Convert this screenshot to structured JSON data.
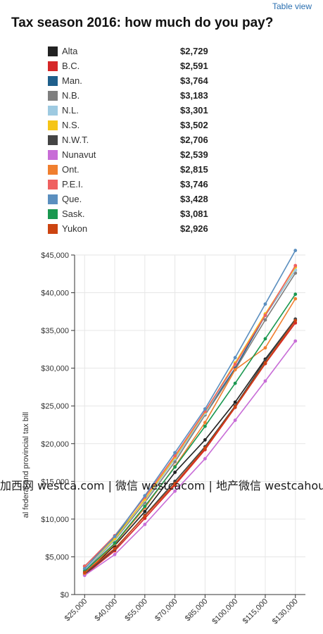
{
  "header": {
    "table_view_label": "Table view",
    "title": "Tax season 2016: how much do you pay?"
  },
  "legend": [
    {
      "name": "Alta",
      "value": "$2,729",
      "color": "#222222"
    },
    {
      "name": "B.C.",
      "value": "$2,591",
      "color": "#d62728"
    },
    {
      "name": "Man.",
      "value": "$3,764",
      "color": "#1f5f8b"
    },
    {
      "name": "N.B.",
      "value": "$3,183",
      "color": "#7f7f7f"
    },
    {
      "name": "N.L.",
      "value": "$3,301",
      "color": "#9ecae1"
    },
    {
      "name": "N.S.",
      "value": "$3,502",
      "color": "#f5c518"
    },
    {
      "name": "N.W.T.",
      "value": "$2,706",
      "color": "#444444"
    },
    {
      "name": "Nunavut",
      "value": "$2,539",
      "color": "#c86dd7"
    },
    {
      "name": "Ont.",
      "value": "$2,815",
      "color": "#f07f2f"
    },
    {
      "name": "P.E.I.",
      "value": "$3,746",
      "color": "#ef6161"
    },
    {
      "name": "Que.",
      "value": "$3,428",
      "color": "#5b8fbf"
    },
    {
      "name": "Sask.",
      "value": "$3,081",
      "color": "#1a9850"
    },
    {
      "name": "Yukon",
      "value": "$2,926",
      "color": "#cc4411"
    }
  ],
  "watermark": "加西网 westca.com | 微信 westcacom | 地产微信 westcahouse",
  "chart_data": {
    "type": "line",
    "x": [
      25000,
      40000,
      55000,
      70000,
      85000,
      100000,
      115000,
      130000
    ],
    "x_tick_labels": [
      "$25,000",
      "$40,000",
      "$55,000",
      "$70,000",
      "$85,000",
      "$100,000",
      "$115,000",
      "$130,000"
    ],
    "x_range": [
      20000,
      135000
    ],
    "ylabel": "al federal and provincial tax bill",
    "ylim": [
      0,
      45000
    ],
    "y_ticks": [
      0,
      5000,
      10000,
      15000,
      20000,
      25000,
      30000,
      35000,
      40000,
      45000
    ],
    "y_tick_labels": [
      "$0",
      "$5,000",
      "$10,000",
      "$15,000",
      "$20,000",
      "$25,000",
      "$30,000",
      "$35,000",
      "$40,000",
      "$45,000"
    ],
    "grid": true,
    "series": [
      {
        "name": "Alta",
        "color": "#222222",
        "values": [
          2729,
          6500,
          11000,
          16200,
          20500,
          25500,
          31200,
          36500
        ]
      },
      {
        "name": "B.C.",
        "color": "#d62728",
        "values": [
          2591,
          5800,
          10100,
          14500,
          19200,
          24800,
          30600,
          36000
        ]
      },
      {
        "name": "Man.",
        "color": "#1f5f8b",
        "values": [
          3764,
          7600,
          12500,
          18000,
          24000,
          30000,
          37000,
          43000
        ]
      },
      {
        "name": "N.B.",
        "color": "#7f7f7f",
        "values": [
          3183,
          7200,
          12200,
          17600,
          23800,
          29800,
          36400,
          42600
        ]
      },
      {
        "name": "N.L.",
        "color": "#9ecae1",
        "values": [
          3301,
          7300,
          12500,
          18000,
          24000,
          30500,
          37100,
          43000
        ]
      },
      {
        "name": "N.S.",
        "color": "#f5c518",
        "values": [
          3502,
          7400,
          12600,
          18200,
          24200,
          30700,
          37200,
          43400
        ]
      },
      {
        "name": "N.W.T.",
        "color": "#444444",
        "values": [
          2706,
          6000,
          10500,
          15000,
          19600,
          25000,
          31000,
          36500
        ]
      },
      {
        "name": "Nunavut",
        "color": "#c86dd7",
        "values": [
          2539,
          5300,
          9300,
          13700,
          18000,
          23100,
          28300,
          33600
        ]
      },
      {
        "name": "Ont.",
        "color": "#f07f2f",
        "values": [
          2815,
          6700,
          11500,
          17000,
          22800,
          29800,
          32700,
          39200
        ]
      },
      {
        "name": "P.E.I.",
        "color": "#ef6161",
        "values": [
          3746,
          7800,
          12900,
          18400,
          24300,
          30500,
          37000,
          43600
        ]
      },
      {
        "name": "Que.",
        "color": "#5b8fbf",
        "values": [
          3428,
          7700,
          13100,
          18800,
          24600,
          31400,
          38500,
          45600
        ]
      },
      {
        "name": "Sask.",
        "color": "#1a9850",
        "values": [
          3081,
          6800,
          11700,
          16900,
          22300,
          28000,
          33900,
          39800
        ]
      },
      {
        "name": "Yukon",
        "color": "#cc4411",
        "values": [
          2926,
          6100,
          10400,
          14700,
          19400,
          24900,
          30700,
          36300
        ]
      }
    ]
  }
}
